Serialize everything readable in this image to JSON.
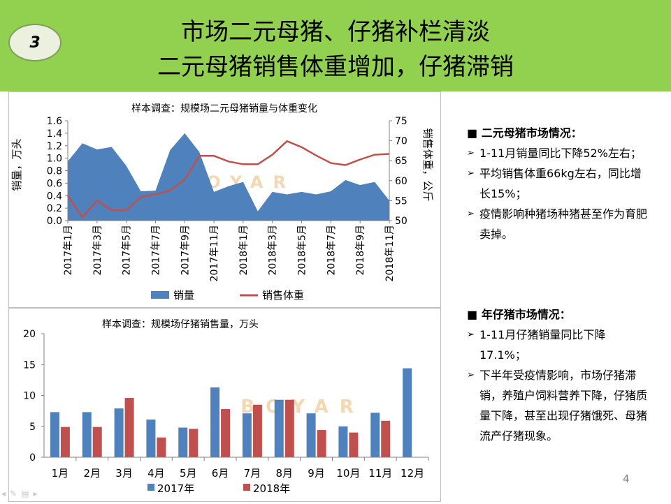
{
  "header": {
    "badge": "3",
    "title_line1": "市场二元母猪、仔猪补栏清淡",
    "title_line2": "二元母猪销售体重增加，仔猪滞销"
  },
  "watermark": "BOYAR",
  "colors": {
    "header_bg": "#92d050",
    "blue": "#4f81bd",
    "red": "#c0504d"
  },
  "chart_data": [
    {
      "type": "area+line",
      "title": "样本调查：规模场二元母猪销量与体重变化",
      "ylabel": "销量，万头",
      "y2label": "销售体重，公斤",
      "ylim": [
        0,
        1.6
      ],
      "y2lim": [
        50,
        75
      ],
      "yticks": [
        "0.0",
        "0.2",
        "0.4",
        "0.6",
        "0.8",
        "1.0",
        "1.2",
        "1.4",
        "1.6"
      ],
      "y2ticks": [
        "50",
        "55",
        "60",
        "65",
        "70",
        "75"
      ],
      "x": [
        "2017年1月",
        "2017年2月",
        "2017年3月",
        "2017年4月",
        "2017年5月",
        "2017年6月",
        "2017年7月",
        "2017年8月",
        "2017年9月",
        "2017年10月",
        "2017年11月",
        "2017年12月",
        "2018年1月",
        "2018年2月",
        "2018年3月",
        "2018年4月",
        "2018年5月",
        "2018年6月",
        "2018年7月",
        "2018年8月",
        "2018年9月",
        "2018年10月",
        "2018年11月"
      ],
      "xticks": [
        "2017年1月",
        "2017年3月",
        "2017年5月",
        "2017年7月",
        "2017年9月",
        "2017年11月",
        "2018年1月",
        "2018年3月",
        "2018年5月",
        "2018年7月",
        "2018年9月",
        "2018年11月"
      ],
      "series": [
        {
          "name": "销量",
          "kind": "area",
          "axis": "left",
          "values": [
            0.95,
            1.24,
            1.14,
            1.18,
            0.88,
            0.47,
            0.48,
            1.13,
            1.4,
            1.1,
            0.46,
            0.55,
            0.62,
            0.15,
            0.46,
            0.42,
            0.46,
            0.42,
            0.47,
            0.65,
            0.57,
            0.62,
            0.32
          ]
        },
        {
          "name": "销售体重",
          "kind": "line",
          "axis": "right",
          "values": [
            56.2,
            50.8,
            55.0,
            52.6,
            52.6,
            55.9,
            56.6,
            57.5,
            60.3,
            66.2,
            66.2,
            64.8,
            64.1,
            64.1,
            66.5,
            69.9,
            68.4,
            66.3,
            64.4,
            63.9,
            65.3,
            66.5,
            66.7
          ]
        }
      ]
    },
    {
      "type": "bar",
      "title": "样本调查：规模场仔猪销售量，万头",
      "ylim": [
        0,
        20
      ],
      "yticks": [
        "0",
        "5",
        "10",
        "15",
        "20"
      ],
      "categories": [
        "1月",
        "2月",
        "3月",
        "4月",
        "5月",
        "6月",
        "7月",
        "8月",
        "9月",
        "10月",
        "11月",
        "12月"
      ],
      "series": [
        {
          "name": "2017年",
          "values": [
            7.3,
            7.3,
            7.9,
            6.1,
            4.8,
            11.3,
            7.1,
            9.3,
            7.1,
            5.0,
            7.2,
            14.4
          ]
        },
        {
          "name": "2018年",
          "values": [
            4.9,
            4.9,
            9.6,
            3.2,
            4.6,
            7.8,
            8.5,
            9.3,
            4.4,
            4.0,
            5.9,
            null
          ]
        }
      ]
    }
  ],
  "panel1": {
    "heading": "二元母猪市场情况：",
    "items": [
      "1-11月销量同比下降52%左右；",
      "平均销售体重66kg左右，同比增长15%；",
      "疫情影响种猪场种猪甚至作为育肥卖掉。"
    ]
  },
  "panel2": {
    "heading": "年仔猪市场情况：",
    "items": [
      "1-11月仔猪销量同比下降17.1%；",
      "下半年受疫情影响，市场仔猪滞销，养殖户饲料营养下降，仔猪质量下降，甚至出现仔猪饿死、母猪流产仔猪现象。"
    ]
  },
  "page_number": "4",
  "nav_icons": [
    "back-icon",
    "pen-icon",
    "menu-icon",
    "forward-icon"
  ]
}
